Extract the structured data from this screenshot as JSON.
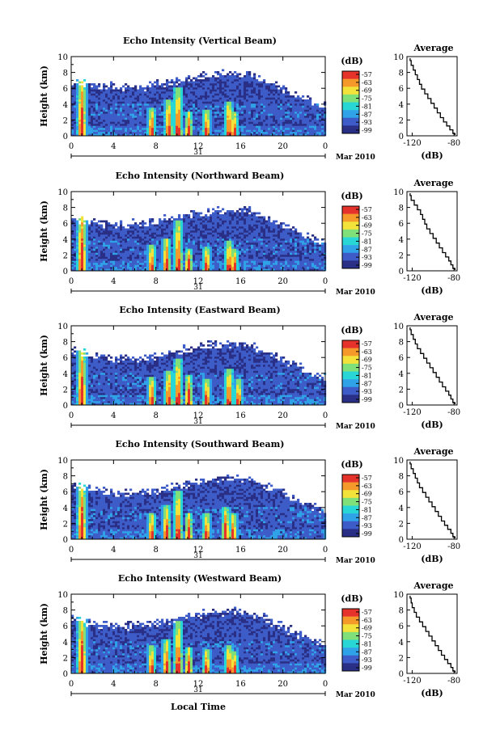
{
  "figure": {
    "x_axis_title": "Local Time",
    "date_label": "Mar 2010",
    "day_label": "31",
    "colorbar_unit": "(dB)",
    "colorbar_ticks": [
      "-57",
      "-63",
      "-69",
      "-75",
      "-81",
      "-87",
      "-93",
      "-99"
    ],
    "avg_title": "Average",
    "avg_xlabel": "(dB)",
    "colors": {
      "background_noise": "#2e3f9e",
      "scale": [
        "#2a2f86",
        "#3d5cc7",
        "#2fa2e8",
        "#28d6d6",
        "#7fe07a",
        "#f2e23a",
        "#f59a2a",
        "#e5322a"
      ]
    }
  },
  "chart_data": [
    {
      "type": "heatmap",
      "title": "Echo Intensity (Vertical Beam)",
      "ylabel": "Height (km)",
      "xlabel": "Local Time",
      "x_ticks": [
        "0",
        "4",
        "8",
        "12",
        "16",
        "20",
        "0"
      ],
      "y_ticks": [
        "0",
        "2",
        "4",
        "6",
        "8",
        "10"
      ],
      "xlim": [
        0,
        24
      ],
      "ylim": [
        0,
        10
      ],
      "colorbar": {
        "label": "(dB)",
        "ticks": [
          -57,
          -63,
          -69,
          -75,
          -81,
          -87,
          -93,
          -99
        ]
      },
      "convective_cells_hour": [
        1.0,
        7.6,
        9.2,
        10.1,
        11.1,
        12.8,
        14.9,
        15.4
      ],
      "echo_top_km": [
        7.6,
        3.5,
        4.5,
        6.2,
        3.0,
        3.2,
        4.4,
        3.0
      ],
      "layer_top_km": 7.0,
      "average_profile": {
        "title": "Average",
        "xlabel": "(dB)",
        "x_ticks": [
          "-120",
          "-80"
        ],
        "y_ticks": [
          "0",
          "2",
          "4",
          "6",
          "8",
          "10"
        ],
        "xlim": [
          -125,
          -77
        ],
        "ylim": [
          0,
          10
        ],
        "x": [
          -122,
          -121,
          -119,
          -117,
          -115,
          -113,
          -111,
          -108,
          -105,
          -102,
          -99,
          -96,
          -93,
          -90,
          -87,
          -84,
          -81,
          -79
        ],
        "y": [
          9.8,
          9.2,
          8.6,
          8.0,
          7.4,
          6.8,
          6.2,
          5.6,
          5.0,
          4.4,
          3.8,
          3.2,
          2.6,
          2.0,
          1.5,
          1.0,
          0.5,
          0.1
        ]
      }
    },
    {
      "type": "heatmap",
      "title": "Echo Intensity (Northward Beam)",
      "ylabel": "Height (km)",
      "xlabel": "Local Time",
      "x_ticks": [
        "0",
        "4",
        "8",
        "12",
        "16",
        "20",
        "0"
      ],
      "y_ticks": [
        "0",
        "2",
        "4",
        "6",
        "8",
        "10"
      ],
      "xlim": [
        0,
        24
      ],
      "ylim": [
        0,
        10
      ],
      "colorbar": {
        "label": "(dB)",
        "ticks": [
          -57,
          -63,
          -69,
          -75,
          -81,
          -87,
          -93,
          -99
        ]
      },
      "convective_cells_hour": [
        1.0,
        7.6,
        9.0,
        10.1,
        11.1,
        12.8,
        14.9,
        15.4
      ],
      "echo_top_km": [
        7.8,
        3.2,
        4.2,
        6.4,
        2.8,
        3.0,
        3.8,
        2.8
      ],
      "layer_top_km": 6.8,
      "average_profile": {
        "title": "Average",
        "xlabel": "(dB)",
        "x_ticks": [
          "-120",
          "-80"
        ],
        "y_ticks": [
          "0",
          "2",
          "4",
          "6",
          "8",
          "10"
        ],
        "xlim": [
          -125,
          -77
        ],
        "ylim": [
          0,
          10
        ],
        "x": [
          -122,
          -121,
          -118,
          -115,
          -112,
          -110,
          -108,
          -106,
          -103,
          -100,
          -97,
          -94,
          -91,
          -88,
          -85,
          -83,
          -81,
          -79
        ],
        "y": [
          9.8,
          9.2,
          8.6,
          8.0,
          7.4,
          6.8,
          6.2,
          5.6,
          5.0,
          4.4,
          3.8,
          3.2,
          2.6,
          2.0,
          1.5,
          1.0,
          0.5,
          0.1
        ]
      }
    },
    {
      "type": "heatmap",
      "title": "Echo Intensity (Eastward Beam)",
      "ylabel": "Height (km)",
      "xlabel": "Local Time",
      "x_ticks": [
        "0",
        "4",
        "8",
        "12",
        "16",
        "20",
        "0"
      ],
      "y_ticks": [
        "0",
        "2",
        "4",
        "6",
        "8",
        "10"
      ],
      "xlim": [
        0,
        24
      ],
      "ylim": [
        0,
        10
      ],
      "colorbar": {
        "label": "(dB)",
        "ticks": [
          -57,
          -63,
          -69,
          -75,
          -81,
          -87,
          -93,
          -99
        ]
      },
      "convective_cells_hour": [
        1.0,
        7.6,
        9.2,
        10.1,
        11.1,
        12.8,
        14.9,
        15.8
      ],
      "echo_top_km": [
        7.5,
        3.5,
        4.4,
        5.8,
        3.8,
        3.4,
        4.6,
        3.2
      ],
      "layer_top_km": 6.8,
      "average_profile": {
        "title": "Average",
        "xlabel": "(dB)",
        "x_ticks": [
          "-120",
          "-80"
        ],
        "y_ticks": [
          "0",
          "2",
          "4",
          "6",
          "8",
          "10"
        ],
        "xlim": [
          -125,
          -77
        ],
        "ylim": [
          0,
          10
        ],
        "x": [
          -122,
          -121,
          -119,
          -117,
          -115,
          -112,
          -109,
          -106,
          -103,
          -100,
          -97,
          -94,
          -91,
          -88,
          -85,
          -83,
          -81,
          -79
        ],
        "y": [
          9.8,
          9.2,
          8.6,
          8.0,
          7.4,
          6.8,
          6.2,
          5.6,
          5.0,
          4.4,
          3.8,
          3.2,
          2.6,
          2.0,
          1.5,
          1.0,
          0.5,
          0.1
        ]
      }
    },
    {
      "type": "heatmap",
      "title": "Echo Intensity (Southward Beam)",
      "ylabel": "Height (km)",
      "xlabel": "Local Time",
      "x_ticks": [
        "0",
        "4",
        "8",
        "12",
        "16",
        "20",
        "0"
      ],
      "y_ticks": [
        "0",
        "2",
        "4",
        "6",
        "8",
        "10"
      ],
      "xlim": [
        0,
        24
      ],
      "ylim": [
        0,
        10
      ],
      "colorbar": {
        "label": "(dB)",
        "ticks": [
          -57,
          -63,
          -69,
          -75,
          -81,
          -87,
          -93,
          -99
        ]
      },
      "convective_cells_hour": [
        1.0,
        7.6,
        9.0,
        10.1,
        11.1,
        12.8,
        14.6,
        15.3
      ],
      "echo_top_km": [
        7.6,
        3.3,
        4.3,
        6.0,
        3.4,
        3.4,
        4.0,
        3.2
      ],
      "layer_top_km": 6.8,
      "average_profile": {
        "title": "Average",
        "xlabel": "(dB)",
        "x_ticks": [
          "-120",
          "-80"
        ],
        "y_ticks": [
          "0",
          "2",
          "4",
          "6",
          "8",
          "10"
        ],
        "xlim": [
          -125,
          -77
        ],
        "ylim": [
          0,
          10
        ],
        "x": [
          -122,
          -121,
          -119,
          -117,
          -115,
          -113,
          -110,
          -107,
          -104,
          -101,
          -98,
          -95,
          -92,
          -89,
          -86,
          -83,
          -81,
          -79
        ],
        "y": [
          9.8,
          9.2,
          8.6,
          8.0,
          7.4,
          6.8,
          6.2,
          5.6,
          5.0,
          4.4,
          3.8,
          3.2,
          2.6,
          2.0,
          1.5,
          1.0,
          0.5,
          0.1
        ]
      }
    },
    {
      "type": "heatmap",
      "title": "Echo Intensity (Westward Beam)",
      "ylabel": "Height (km)",
      "xlabel": "Local Time",
      "x_ticks": [
        "0",
        "4",
        "8",
        "12",
        "16",
        "20",
        "0"
      ],
      "y_ticks": [
        "0",
        "2",
        "4",
        "6",
        "8",
        "10"
      ],
      "xlim": [
        0,
        24
      ],
      "ylim": [
        0,
        10
      ],
      "colorbar": {
        "label": "(dB)",
        "ticks": [
          -57,
          -63,
          -69,
          -75,
          -81,
          -87,
          -93,
          -99
        ]
      },
      "convective_cells_hour": [
        1.0,
        7.6,
        9.0,
        10.1,
        11.1,
        12.8,
        14.9,
        15.4
      ],
      "echo_top_km": [
        7.8,
        3.5,
        4.3,
        6.6,
        3.2,
        3.0,
        3.6,
        2.9
      ],
      "layer_top_km": 6.9,
      "average_profile": {
        "title": "Average",
        "xlabel": "(dB)",
        "x_ticks": [
          "-120",
          "-80"
        ],
        "y_ticks": [
          "0",
          "2",
          "4",
          "6",
          "8",
          "10"
        ],
        "xlim": [
          -125,
          -77
        ],
        "ylim": [
          0,
          10
        ],
        "x": [
          -122,
          -121,
          -120,
          -118,
          -116,
          -113,
          -110,
          -107,
          -104,
          -101,
          -98,
          -95,
          -92,
          -89,
          -86,
          -83,
          -81,
          -79
        ],
        "y": [
          9.8,
          9.2,
          8.6,
          8.0,
          7.4,
          6.8,
          6.2,
          5.6,
          5.0,
          4.4,
          3.8,
          3.2,
          2.6,
          2.0,
          1.5,
          1.0,
          0.5,
          0.1
        ]
      }
    }
  ]
}
